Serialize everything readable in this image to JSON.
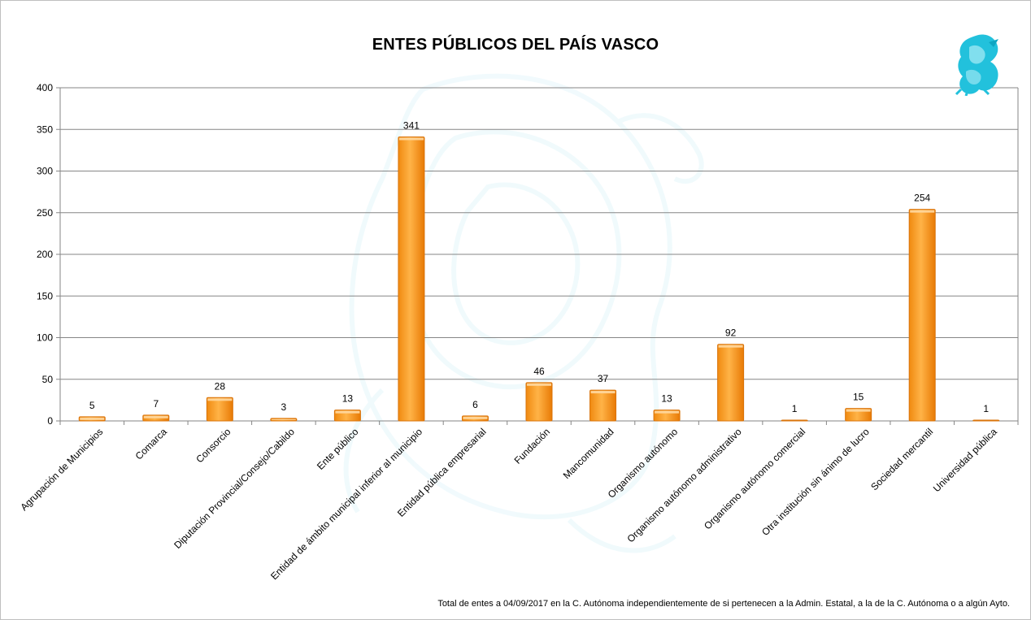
{
  "chart_data": {
    "type": "bar",
    "title": "ENTES PÚBLICOS DEL PAÍS VASCO",
    "xlabel": "",
    "ylabel": "",
    "ylim": [
      0,
      400
    ],
    "yticks": [
      0,
      50,
      100,
      150,
      200,
      250,
      300,
      350,
      400
    ],
    "grid": true,
    "legend": "none",
    "categories": [
      "Agrupación de Municipios",
      "Comarca",
      "Consorcio",
      "Diputación Provincial/Consejo/Cabildo",
      "Ente público",
      "Entidad de ámbito municipal inferior al municipio",
      "Entidad pública empresarial",
      "Fundación",
      "Mancomunidad",
      "Organismo autónomo",
      "Organismo autónomo administrativo",
      "Organismo autónomo comercial",
      "Otra institución sin ánimo de lucro",
      "Sociedad mercantil",
      "Universidad pública"
    ],
    "values": [
      5,
      7,
      28,
      3,
      13,
      341,
      6,
      46,
      37,
      13,
      92,
      1,
      15,
      254,
      1
    ],
    "bar_color": "#f7941d",
    "footnote": "Total de entes  a 04/09/2017 en  la C. Autónoma  independientemente  de  si pertenecen  a la Admin. Estatal, a  la de la C. Autónoma  o a algún Ayto."
  },
  "watermark_icon": "griffin-icon",
  "logo_icon": "griffin-icon"
}
